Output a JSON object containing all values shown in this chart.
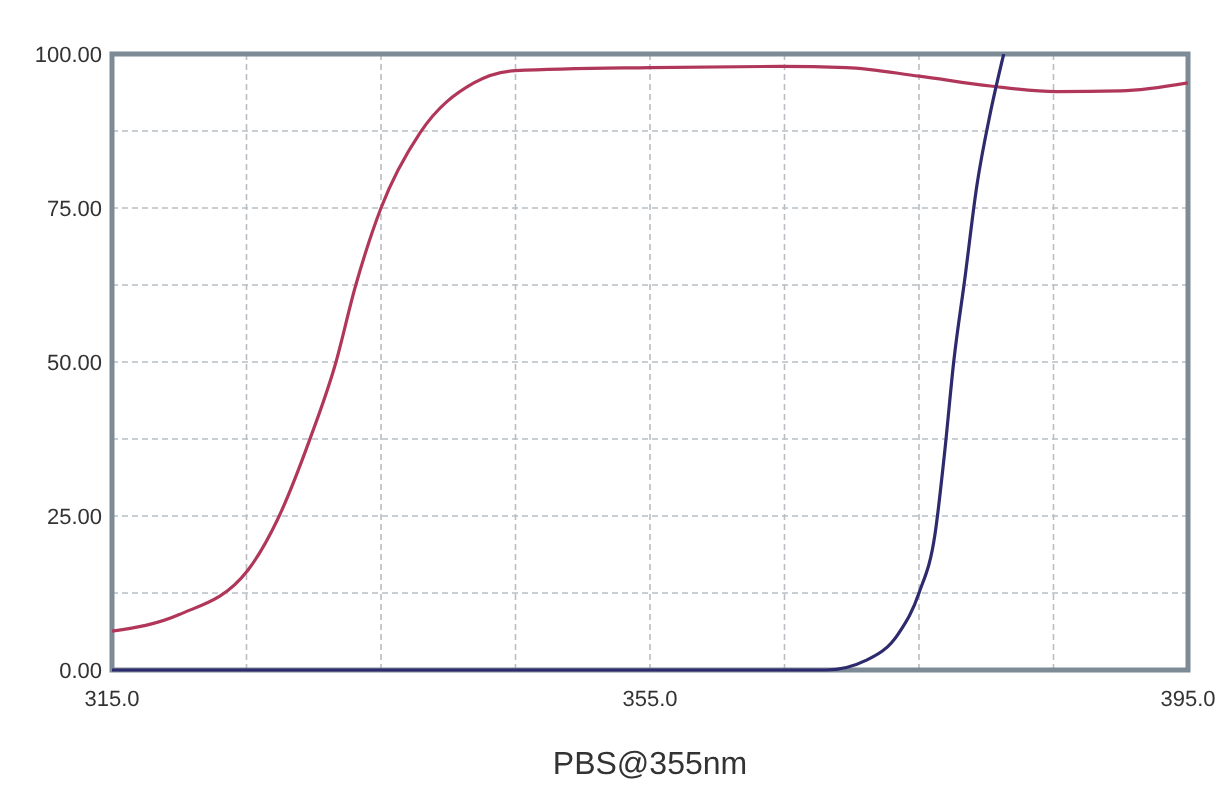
{
  "chart_data": {
    "type": "line",
    "xlabel": "PBS@355nm",
    "xlim": [
      315,
      395
    ],
    "ylim": [
      0,
      100
    ],
    "xticks": [
      {
        "value": 315,
        "label": "315.0"
      },
      {
        "value": 325,
        "label": null
      },
      {
        "value": 335,
        "label": null
      },
      {
        "value": 345,
        "label": null
      },
      {
        "value": 355,
        "label": "355.0"
      },
      {
        "value": 365,
        "label": null
      },
      {
        "value": 375,
        "label": null
      },
      {
        "value": 385,
        "label": null
      },
      {
        "value": 395,
        "label": "395.0"
      }
    ],
    "yticks": [
      {
        "value": 0,
        "label": "0.00"
      },
      {
        "value": 12.5,
        "label": null
      },
      {
        "value": 25,
        "label": "25.00"
      },
      {
        "value": 37.5,
        "label": null
      },
      {
        "value": 50,
        "label": "50.00"
      },
      {
        "value": 62.5,
        "label": null
      },
      {
        "value": 75,
        "label": "75.00"
      },
      {
        "value": 87.5,
        "label": null
      },
      {
        "value": 100,
        "label": "100.00"
      }
    ],
    "grid": true,
    "line_style": "solid",
    "marker": "none",
    "series": [
      {
        "color": "#b0375a",
        "x": [
          315,
          320,
          325.1,
          327.3,
          329.7,
          331.6,
          333.1,
          335,
          337.9,
          341.9,
          345,
          355,
          364.7,
          369.6,
          375,
          380.3,
          385.2,
          390,
          395
        ],
        "values": [
          6.3,
          9,
          16.2,
          24.4,
          37.4,
          49.6,
          62.3,
          75,
          87.2,
          95.3,
          97.3,
          97.8,
          98,
          97.8,
          96.4,
          94.8,
          93.9,
          94,
          95.3
        ]
      },
      {
        "color": "#2e2a6e",
        "x": [
          315,
          368.1,
          371.1,
          373.5,
          375,
          376.2,
          376.9,
          377.6,
          378.4,
          379.3,
          380.3,
          381.3
        ],
        "values": [
          0,
          0,
          1.6,
          6,
          12.5,
          22.2,
          35.2,
          50.4,
          63.4,
          78.6,
          90.4,
          100
        ]
      }
    ]
  }
}
